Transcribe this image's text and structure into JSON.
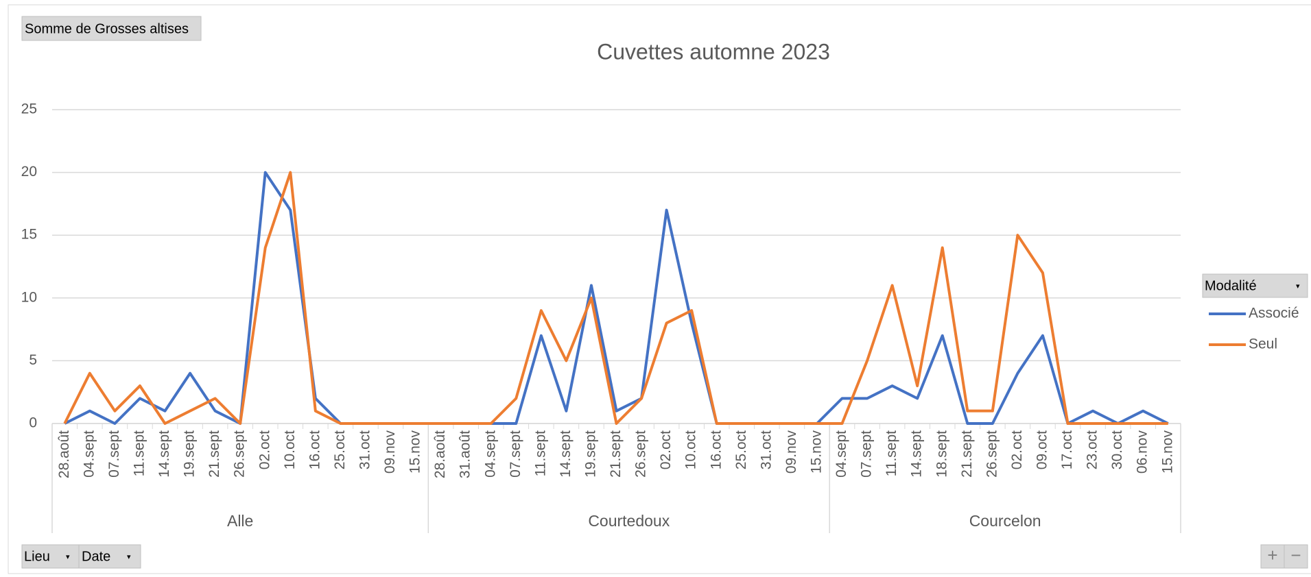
{
  "chart_data": {
    "type": "line",
    "title": "Cuvettes automne 2023",
    "field_button": "Somme de Grosses altises",
    "legend_title": "Modalité",
    "axis_buttons": [
      "Lieu",
      "Date"
    ],
    "zoom_buttons": [
      "+",
      "−"
    ],
    "groups": [
      {
        "name": "Alle",
        "categories": [
          "28.août",
          "04.sept",
          "07.sept",
          "11.sept",
          "14.sept",
          "19.sept",
          "21.sept",
          "26.sept",
          "02.oct",
          "10.oct",
          "16.oct",
          "25.oct",
          "31.oct",
          "09.nov",
          "15.nov"
        ]
      },
      {
        "name": "Courtedoux",
        "categories": [
          "28.août",
          "31.août",
          "04.sept",
          "07.sept",
          "11.sept",
          "14.sept",
          "19.sept",
          "21.sept",
          "26.sept",
          "02.oct",
          "10.oct",
          "16.oct",
          "25.oct",
          "31.oct",
          "09.nov",
          "15.nov"
        ]
      },
      {
        "name": "Courcelon",
        "categories": [
          "04.sept",
          "07.sept",
          "11.sept",
          "14.sept",
          "18.sept",
          "21.sept",
          "26.sept",
          "02.oct",
          "09.oct",
          "17.oct",
          "23.oct",
          "30.oct",
          "06.nov",
          "15.nov"
        ]
      }
    ],
    "series": [
      {
        "name": "Associé",
        "color": "#4472c4",
        "values": [
          0,
          1,
          0,
          2,
          1,
          4,
          1,
          0,
          20,
          17,
          2,
          0,
          0,
          0,
          0,
          0,
          0,
          0,
          0,
          7,
          1,
          11,
          1,
          2,
          17,
          8,
          0,
          0,
          0,
          0,
          0,
          2,
          2,
          3,
          2,
          7,
          0,
          0,
          4,
          7,
          0,
          1,
          0,
          1,
          0
        ]
      },
      {
        "name": "Seul",
        "color": "#ed7d31",
        "values": [
          0,
          4,
          1,
          3,
          0,
          1,
          2,
          0,
          14,
          20,
          1,
          0,
          0,
          0,
          0,
          0,
          0,
          0,
          2,
          9,
          5,
          10,
          0,
          2,
          8,
          9,
          0,
          0,
          0,
          0,
          0,
          0,
          5,
          11,
          3,
          14,
          1,
          1,
          15,
          12,
          0,
          0,
          0,
          0,
          0
        ]
      }
    ],
    "ylim": [
      0,
      25
    ],
    "yticks": [
      0,
      5,
      10,
      15,
      20,
      25
    ],
    "grid": true,
    "legend": "right"
  }
}
